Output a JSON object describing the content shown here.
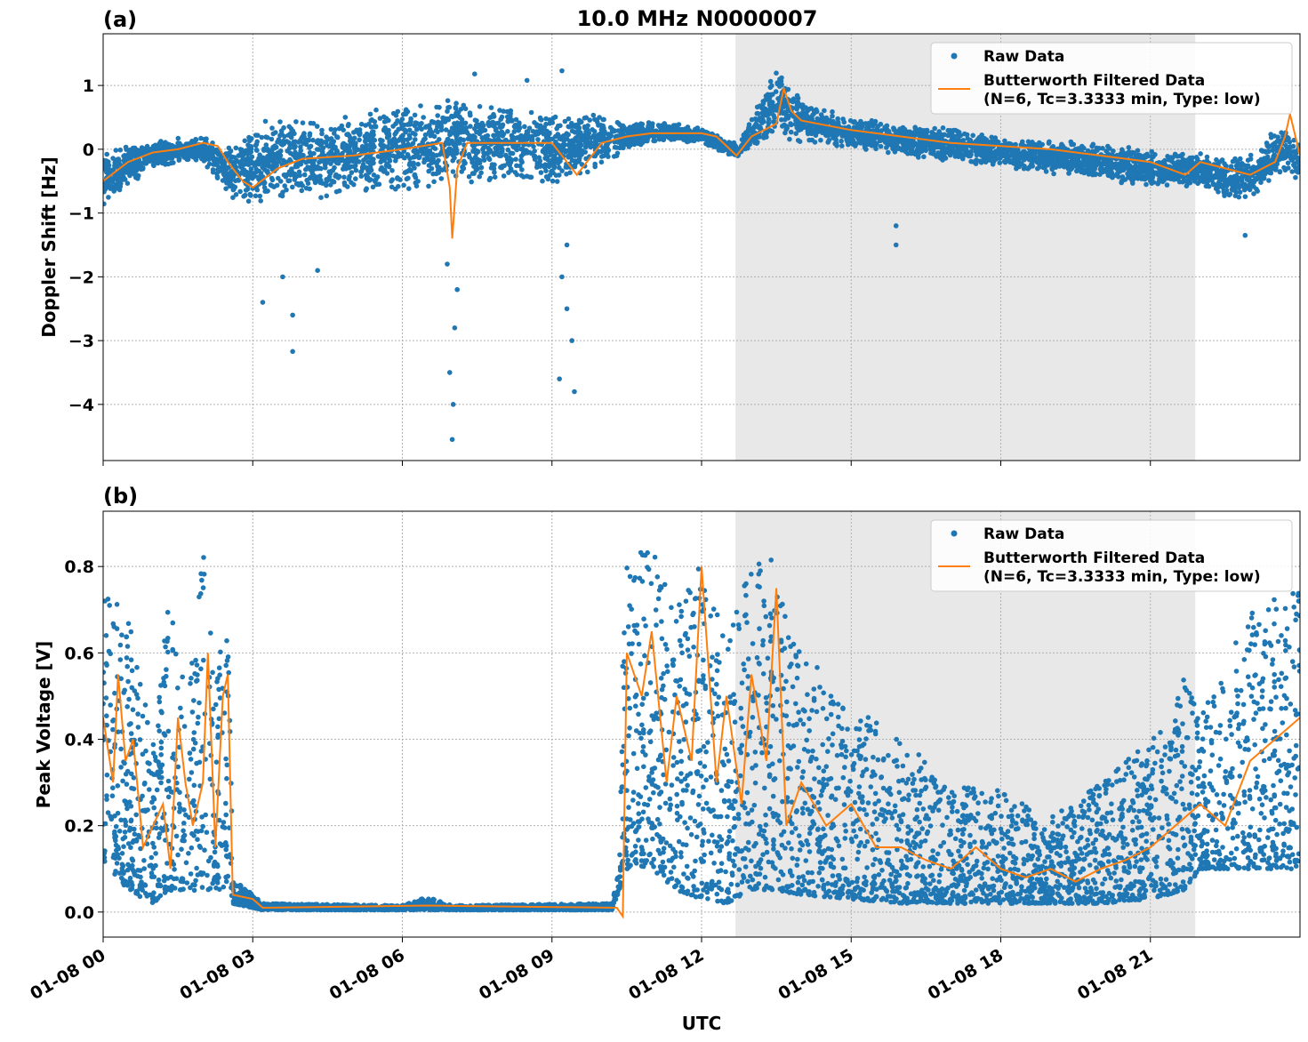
{
  "chart_data": [
    {
      "type": "scatter",
      "panel_label": "(a)",
      "title": "10.0 MHz N0000007",
      "xlabel": "",
      "ylabel": "Doppler Shift [Hz]",
      "xlim_hours": [
        0,
        24
      ],
      "ylim": [
        -4.88,
        1.81
      ],
      "yticks": [
        1,
        0,
        -1,
        -2,
        -3,
        -4
      ],
      "ytick_labels": [
        "1",
        "0",
        "−1",
        "−2",
        "−3",
        "−4"
      ],
      "grid": true,
      "shaded_hours": [
        12.68,
        21.9
      ],
      "legend": {
        "placement": "top-right",
        "entries": [
          "Raw Data",
          "Butterworth Filtered Data",
          "(N=6, Tc=3.3333 min, Type: low)"
        ]
      },
      "colors": {
        "raw": "#1f77b4",
        "filtered": "#ff7f0e",
        "shade": "#e8e8e8"
      },
      "raw_envelope": [
        [
          0,
          -0.9,
          0.0
        ],
        [
          1,
          -0.3,
          0.15
        ],
        [
          2,
          -0.2,
          0.2
        ],
        [
          2.5,
          -0.8,
          0.1
        ],
        [
          3,
          -0.9,
          0.3
        ],
        [
          3.3,
          -0.9,
          0.5
        ],
        [
          4,
          -0.8,
          0.5
        ],
        [
          5,
          -0.8,
          0.6
        ],
        [
          6,
          -0.7,
          0.7
        ],
        [
          7,
          -0.6,
          0.8
        ],
        [
          8,
          -0.5,
          0.7
        ],
        [
          9,
          -0.6,
          0.6
        ],
        [
          10,
          -0.3,
          0.6
        ],
        [
          10.5,
          0.0,
          0.4
        ],
        [
          11,
          0.1,
          0.45
        ],
        [
          12,
          0.1,
          0.35
        ],
        [
          12.7,
          -0.15,
          0.1
        ],
        [
          13,
          0.0,
          0.5
        ],
        [
          13.5,
          0.2,
          1.3
        ],
        [
          14,
          0.1,
          0.8
        ],
        [
          15,
          0.0,
          0.5
        ],
        [
          16,
          -0.1,
          0.4
        ],
        [
          17,
          -0.2,
          0.35
        ],
        [
          18,
          -0.3,
          0.2
        ],
        [
          19,
          -0.4,
          0.15
        ],
        [
          20,
          -0.5,
          0.1
        ],
        [
          21,
          -0.6,
          0.0
        ],
        [
          22,
          -0.6,
          -0.05
        ],
        [
          23,
          -0.9,
          -0.1
        ],
        [
          23.6,
          -0.4,
          0.4
        ],
        [
          24,
          -0.5,
          0.1
        ]
      ],
      "raw_outliers": [
        [
          3.2,
          -2.4
        ],
        [
          3.6,
          -2.0
        ],
        [
          3.8,
          -2.6
        ],
        [
          3.8,
          -3.17
        ],
        [
          4.3,
          -1.9
        ],
        [
          6.95,
          -3.5
        ],
        [
          7.0,
          -4.55
        ],
        [
          7.02,
          -4.0
        ],
        [
          7.05,
          -2.8
        ],
        [
          7.1,
          -2.2
        ],
        [
          6.9,
          -1.8
        ],
        [
          7.45,
          1.18
        ],
        [
          8.5,
          1.08
        ],
        [
          9.2,
          1.23
        ],
        [
          9.15,
          -3.6
        ],
        [
          9.3,
          -2.5
        ],
        [
          9.45,
          -3.8
        ],
        [
          9.4,
          -3.0
        ],
        [
          9.2,
          -2.0
        ],
        [
          9.3,
          -1.5
        ],
        [
          15.9,
          -1.2
        ],
        [
          15.9,
          -1.5
        ],
        [
          22.9,
          -1.35
        ]
      ],
      "filtered": {
        "x_hours": [
          0,
          0.5,
          1,
          1.5,
          2,
          2.3,
          2.5,
          2.8,
          3,
          3.5,
          4,
          5,
          6,
          6.8,
          6.95,
          7.0,
          7.1,
          7.3,
          8,
          9,
          9.3,
          9.5,
          9.8,
          10,
          10.5,
          11,
          12,
          12.3,
          12.7,
          13,
          13.5,
          13.65,
          13.8,
          14,
          15,
          16,
          17,
          18,
          19,
          20,
          21,
          21.7,
          22,
          22.5,
          23,
          23.5,
          23.7,
          23.8,
          24
        ],
        "y": [
          -0.5,
          -0.2,
          -0.05,
          0.0,
          0.1,
          0.05,
          -0.2,
          -0.5,
          -0.6,
          -0.3,
          -0.15,
          -0.1,
          0.0,
          0.1,
          -0.6,
          -1.4,
          -0.3,
          0.1,
          0.1,
          0.1,
          -0.2,
          -0.4,
          -0.1,
          0.1,
          0.2,
          0.25,
          0.25,
          0.2,
          -0.1,
          0.2,
          0.4,
          0.95,
          0.6,
          0.45,
          0.3,
          0.2,
          0.1,
          0.05,
          0.0,
          -0.1,
          -0.2,
          -0.4,
          -0.2,
          -0.3,
          -0.4,
          -0.2,
          0.2,
          0.55,
          -0.1
        ]
      }
    },
    {
      "type": "scatter",
      "panel_label": "(b)",
      "xlabel": "UTC",
      "ylabel": "Peak Voltage [V]",
      "xlim_hours": [
        0,
        24
      ],
      "ylim": [
        -0.058,
        0.928
      ],
      "yticks": [
        0.8,
        0.6,
        0.4,
        0.2,
        0.0
      ],
      "ytick_labels": [
        "0.8",
        "0.6",
        "0.4",
        "0.2",
        "0.0"
      ],
      "xticks_hours": [
        0,
        3,
        6,
        9,
        12,
        15,
        18,
        21
      ],
      "xtick_labels": [
        "01-08 00",
        "01-08 03",
        "01-08 06",
        "01-08 09",
        "01-08 12",
        "01-08 15",
        "01-08 18",
        "01-08 21"
      ],
      "grid": true,
      "shaded_hours": [
        12.68,
        21.9
      ],
      "legend": {
        "placement": "top-right",
        "entries": [
          "Raw Data",
          "Butterworth Filtered Data",
          "(N=6, Tc=3.3333 min, Type: low)"
        ]
      },
      "raw_envelope": [
        [
          0,
          0.12,
          0.75
        ],
        [
          0.5,
          0.05,
          0.7
        ],
        [
          1,
          0.02,
          0.4
        ],
        [
          1.3,
          0.05,
          0.74
        ],
        [
          1.7,
          0.05,
          0.5
        ],
        [
          2.0,
          0.05,
          0.85
        ],
        [
          2.3,
          0.05,
          0.55
        ],
        [
          2.5,
          0.05,
          0.82
        ],
        [
          2.6,
          0.02,
          0.08
        ],
        [
          3.2,
          0.005,
          0.02
        ],
        [
          6.0,
          0.005,
          0.015
        ],
        [
          6.5,
          0.005,
          0.035
        ],
        [
          7,
          0.005,
          0.015
        ],
        [
          10.2,
          0.005,
          0.02
        ],
        [
          10.35,
          0.05,
          0.1
        ],
        [
          10.45,
          0.1,
          0.85
        ],
        [
          11,
          0.1,
          0.85
        ],
        [
          11.5,
          0.05,
          0.7
        ],
        [
          12,
          0.03,
          0.82
        ],
        [
          12.5,
          0.02,
          0.65
        ],
        [
          13,
          0.05,
          0.8
        ],
        [
          13.5,
          0.05,
          0.87
        ],
        [
          14,
          0.04,
          0.6
        ],
        [
          15,
          0.03,
          0.5
        ],
        [
          16,
          0.02,
          0.4
        ],
        [
          17,
          0.02,
          0.3
        ],
        [
          18,
          0.02,
          0.28
        ],
        [
          19,
          0.02,
          0.22
        ],
        [
          20,
          0.02,
          0.3
        ],
        [
          21,
          0.03,
          0.4
        ],
        [
          21.7,
          0.05,
          0.55
        ],
        [
          22,
          0.1,
          0.45
        ],
        [
          23,
          0.1,
          0.7
        ],
        [
          24,
          0.1,
          0.75
        ]
      ],
      "filtered": {
        "x_hours": [
          0,
          0.2,
          0.3,
          0.45,
          0.6,
          0.8,
          1,
          1.2,
          1.35,
          1.5,
          1.65,
          1.8,
          2.0,
          2.1,
          2.25,
          2.4,
          2.5,
          2.6,
          3.0,
          3.2,
          6.5,
          10.3,
          10.42,
          10.5,
          10.8,
          11,
          11.3,
          11.5,
          11.8,
          12,
          12.3,
          12.5,
          12.8,
          13,
          13.3,
          13.5,
          13.7,
          14,
          14.5,
          15,
          15.5,
          16,
          16.5,
          17,
          17.5,
          18,
          18.5,
          19,
          19.5,
          20,
          20.5,
          21,
          21.5,
          22,
          22.5,
          23,
          23.5,
          24
        ],
        "y": [
          0.45,
          0.3,
          0.55,
          0.35,
          0.4,
          0.15,
          0.2,
          0.25,
          0.1,
          0.45,
          0.3,
          0.2,
          0.3,
          0.6,
          0.15,
          0.5,
          0.55,
          0.04,
          0.03,
          0.01,
          0.015,
          0.01,
          -0.01,
          0.6,
          0.5,
          0.65,
          0.3,
          0.5,
          0.35,
          0.8,
          0.3,
          0.5,
          0.25,
          0.55,
          0.35,
          0.75,
          0.2,
          0.3,
          0.2,
          0.25,
          0.15,
          0.15,
          0.12,
          0.1,
          0.15,
          0.1,
          0.08,
          0.1,
          0.07,
          0.1,
          0.12,
          0.15,
          0.2,
          0.25,
          0.2,
          0.35,
          0.4,
          0.45
        ]
      }
    }
  ]
}
